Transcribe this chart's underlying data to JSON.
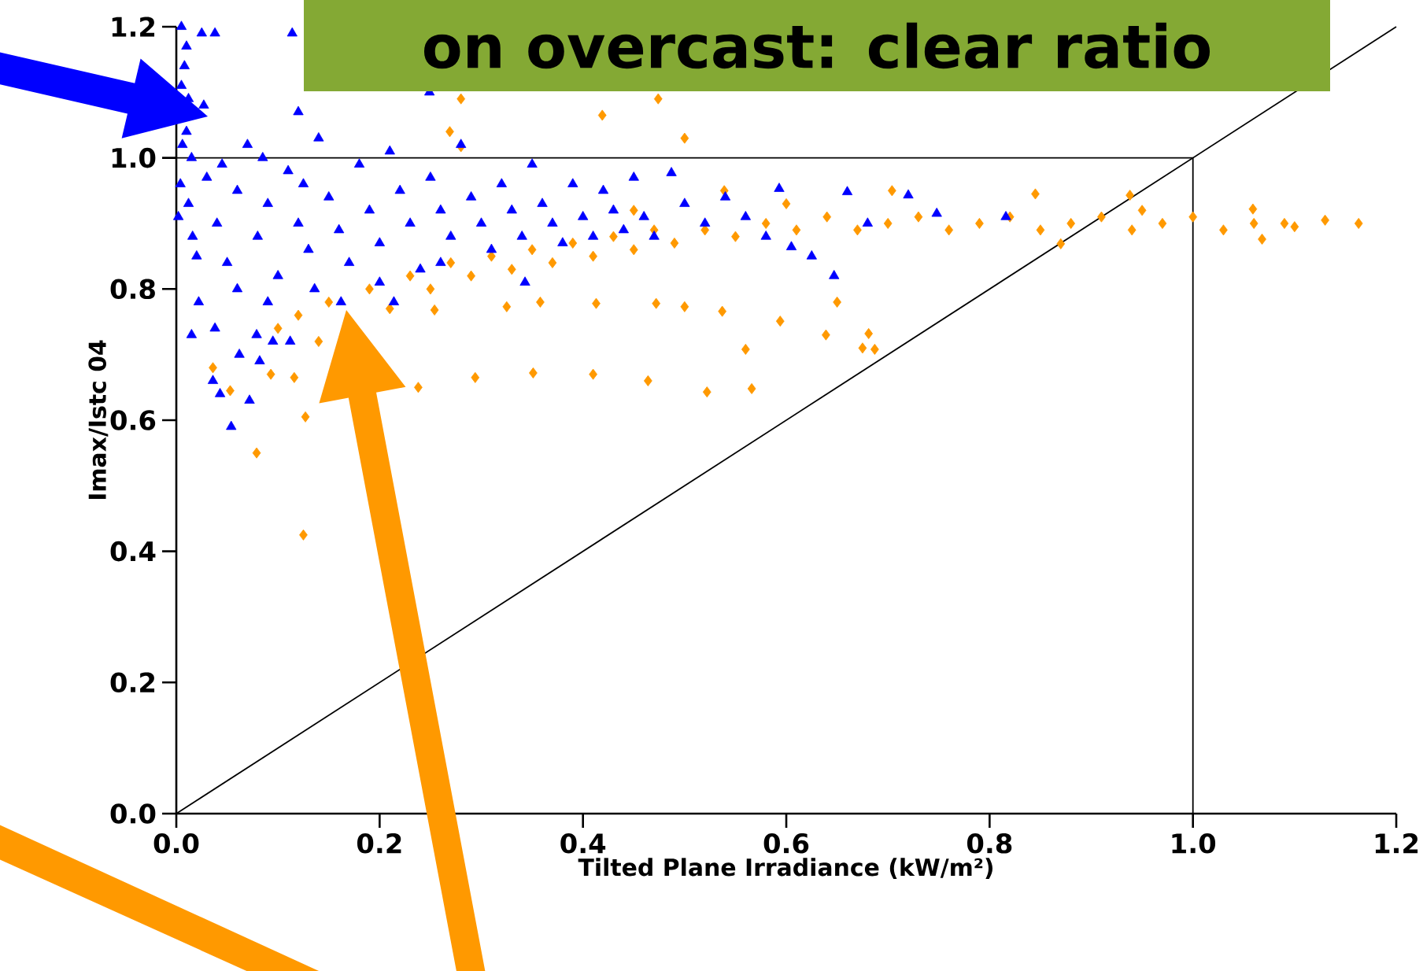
{
  "chart_data": {
    "type": "scatter",
    "title": "on overcast: clear ratio",
    "xlabel": "Tilted Plane Irradiance (kW/m²)",
    "ylabel": "Imax/Istc 04",
    "xlim": [
      0,
      1.2
    ],
    "ylim": [
      0,
      1.2
    ],
    "xticks": [
      {
        "value": 0,
        "label": "0.0"
      },
      {
        "value": 0.2,
        "label": "0.2"
      },
      {
        "value": 0.4,
        "label": "0.4"
      },
      {
        "value": 0.6,
        "label": "0.6"
      },
      {
        "value": 0.8,
        "label": "0.8"
      },
      {
        "value": 1.0,
        "label": "1.0"
      },
      {
        "value": 1.2,
        "label": "1.2"
      }
    ],
    "yticks": [
      {
        "value": 0,
        "label": "0.0"
      },
      {
        "value": 0.2,
        "label": "0.2"
      },
      {
        "value": 0.4,
        "label": "0.4"
      },
      {
        "value": 0.6,
        "label": "0.6"
      },
      {
        "value": 0.8,
        "label": "0.8"
      },
      {
        "value": 1.0,
        "label": "1.0"
      },
      {
        "value": 1.2,
        "label": "1.2"
      }
    ],
    "series": [
      {
        "color": "#ff9900",
        "marker": "diamond",
        "x": [
          0.125,
          0.079,
          0.127,
          0.053,
          0.036,
          0.093,
          0.116,
          0.238,
          0.294,
          0.351,
          0.41,
          0.464,
          0.325,
          0.358,
          0.413,
          0.472,
          0.5,
          0.254,
          0.28,
          0.474,
          0.419,
          0.5,
          0.269,
          0.28,
          0.539,
          0.704,
          0.845,
          0.938,
          1.059,
          1.163,
          1.13,
          1.1,
          1.068,
          0.537,
          0.594,
          0.65,
          0.639,
          0.681,
          0.675,
          0.687,
          0.56,
          0.522,
          0.566,
          0.87,
          0.1,
          0.12,
          0.14,
          0.15,
          0.19,
          0.21,
          0.23,
          0.25,
          0.27,
          0.29,
          0.31,
          0.33,
          0.35,
          0.37,
          0.39,
          0.41,
          0.43,
          0.45,
          0.47,
          0.49,
          0.52,
          0.55,
          0.58,
          0.61,
          0.64,
          0.67,
          0.7,
          0.73,
          0.76,
          0.79,
          0.82,
          0.85,
          0.88,
          0.91,
          0.94,
          0.97,
          1.0,
          1.03,
          1.06,
          1.09,
          0.95,
          0.6,
          0.45
        ],
        "values": [
          0.425,
          0.55,
          0.605,
          0.645,
          0.68,
          0.67,
          0.665,
          0.65,
          0.665,
          0.672,
          0.67,
          0.66,
          0.773,
          0.78,
          0.778,
          0.778,
          0.773,
          0.768,
          1.09,
          1.09,
          1.065,
          1.03,
          1.04,
          1.017,
          0.95,
          0.95,
          0.945,
          0.943,
          0.922,
          0.9,
          0.905,
          0.895,
          0.876,
          0.766,
          0.751,
          0.78,
          0.73,
          0.732,
          0.71,
          0.708,
          0.708,
          0.643,
          0.648,
          0.869,
          0.74,
          0.76,
          0.72,
          0.78,
          0.8,
          0.77,
          0.82,
          0.8,
          0.84,
          0.82,
          0.85,
          0.83,
          0.86,
          0.84,
          0.87,
          0.85,
          0.88,
          0.86,
          0.89,
          0.87,
          0.89,
          0.88,
          0.9,
          0.89,
          0.91,
          0.89,
          0.9,
          0.91,
          0.89,
          0.9,
          0.91,
          0.89,
          0.9,
          0.91,
          0.89,
          0.9,
          0.91,
          0.89,
          0.9,
          0.9,
          0.92,
          0.93,
          0.92
        ]
      },
      {
        "color": "#0000ff",
        "marker": "triangle",
        "x": [
          0.005,
          0.01,
          0.008,
          0.005,
          0.012,
          0.01,
          0.006,
          0.015,
          0.004,
          0.002,
          0.012,
          0.016,
          0.02,
          0.025,
          0.038,
          0.114,
          0.12,
          0.027,
          0.249,
          0.054,
          0.072,
          0.043,
          0.036,
          0.015,
          0.022,
          0.038,
          0.079,
          0.082,
          0.062,
          0.095,
          0.112,
          0.136,
          0.162,
          0.214,
          0.343,
          0.03,
          0.04,
          0.05,
          0.06,
          0.07,
          0.08,
          0.09,
          0.1,
          0.11,
          0.12,
          0.13,
          0.14,
          0.15,
          0.16,
          0.17,
          0.18,
          0.19,
          0.2,
          0.21,
          0.22,
          0.23,
          0.24,
          0.25,
          0.26,
          0.27,
          0.28,
          0.29,
          0.3,
          0.31,
          0.32,
          0.33,
          0.34,
          0.35,
          0.36,
          0.37,
          0.38,
          0.39,
          0.4,
          0.41,
          0.42,
          0.43,
          0.44,
          0.45,
          0.46,
          0.47,
          0.487,
          0.5,
          0.52,
          0.54,
          0.56,
          0.58,
          0.593,
          0.605,
          0.625,
          0.647,
          0.66,
          0.68,
          0.72,
          0.748,
          0.816,
          0.06,
          0.09,
          0.2,
          0.26,
          0.125,
          0.045,
          0.085
        ],
        "values": [
          1.2,
          1.17,
          1.14,
          1.11,
          1.09,
          1.04,
          1.02,
          1.0,
          0.96,
          0.91,
          0.93,
          0.88,
          0.85,
          1.19,
          1.19,
          1.19,
          1.07,
          1.08,
          1.1,
          0.59,
          0.63,
          0.64,
          0.66,
          0.73,
          0.78,
          0.74,
          0.73,
          0.69,
          0.7,
          0.72,
          0.72,
          0.8,
          0.78,
          0.78,
          0.81,
          0.97,
          0.9,
          0.84,
          0.95,
          1.02,
          0.88,
          0.93,
          0.82,
          0.98,
          0.9,
          0.86,
          1.03,
          0.94,
          0.89,
          0.84,
          0.99,
          0.92,
          0.87,
          1.01,
          0.95,
          0.9,
          0.83,
          0.97,
          0.92,
          0.88,
          1.02,
          0.94,
          0.9,
          0.86,
          0.96,
          0.92,
          0.88,
          0.99,
          0.93,
          0.9,
          0.87,
          0.96,
          0.91,
          0.88,
          0.95,
          0.92,
          0.89,
          0.97,
          0.91,
          0.88,
          0.977,
          0.93,
          0.9,
          0.94,
          0.91,
          0.88,
          0.953,
          0.864,
          0.85,
          0.82,
          0.948,
          0.9,
          0.943,
          0.915,
          0.91,
          0.8,
          0.78,
          0.81,
          0.84,
          0.96,
          0.99,
          1.0
        ]
      },
      {
        "type": "line",
        "color": "#000000",
        "x": [
          0,
          1.0,
          1.0
        ],
        "values": [
          1.0,
          1.0,
          0
        ]
      },
      {
        "type": "line",
        "color": "#000000",
        "x": [
          0,
          1.2
        ],
        "values": [
          0,
          1.2
        ]
      }
    ]
  }
}
